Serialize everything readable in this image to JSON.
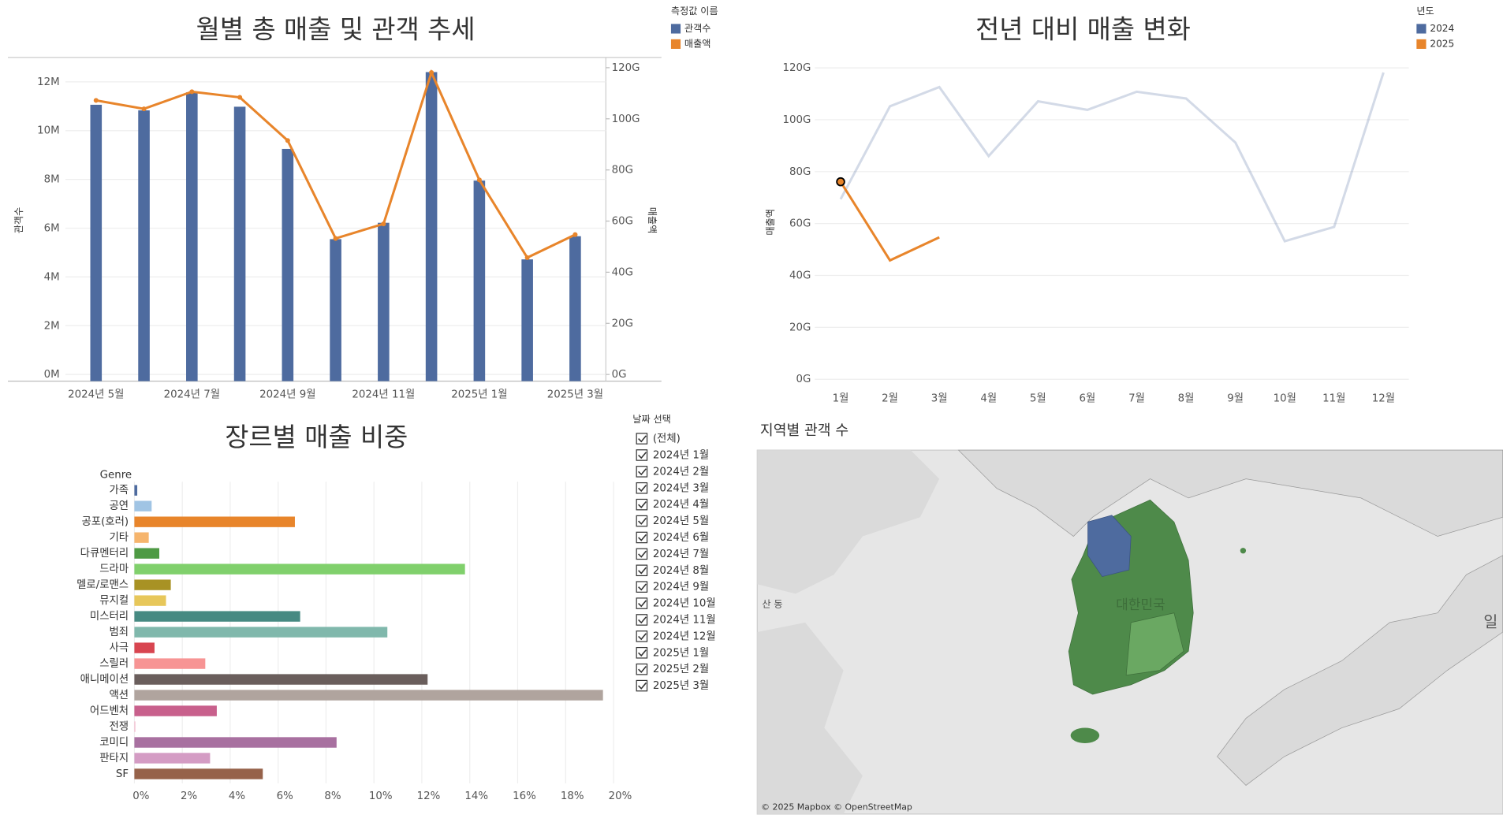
{
  "chart_data": [
    {
      "type": "combo",
      "title": "월별 총 매출 및 관객 추세",
      "legend_title": "측정값 이름",
      "categories": [
        "2024년 5월",
        null,
        "2024년 7월",
        null,
        "2024년 9월",
        null,
        "2024년 11월",
        null,
        "2025년 1월",
        null,
        "2025년 3월"
      ],
      "series": [
        {
          "name": "관객수",
          "type": "bar",
          "color": "#4e6b9f",
          "values": [
            11060000,
            10830000,
            11570000,
            10980000,
            9250000,
            5550000,
            6220000,
            12400000,
            7950000,
            4720000,
            5670000
          ]
        },
        {
          "name": "매출액",
          "type": "line",
          "axis": "y2",
          "color": "#e8852b",
          "values": [
            107200000000,
            103900000000,
            110600000000,
            108400000000,
            91500000000,
            53200000000,
            58900000000,
            118100000000,
            76100000000,
            45700000000,
            54700000000
          ]
        }
      ],
      "ylabel": "관객수",
      "y2label": "매출액",
      "ylim": [
        0,
        13000000
      ],
      "yticks": [
        {
          "value": 0,
          "label": "0M"
        },
        {
          "value": 2000000,
          "label": "2M"
        },
        {
          "value": 4000000,
          "label": "4M"
        },
        {
          "value": 6000000,
          "label": "6M"
        },
        {
          "value": 8000000,
          "label": "8M"
        },
        {
          "value": 10000000,
          "label": "10M"
        },
        {
          "value": 12000000,
          "label": "12M"
        }
      ],
      "y2lim": [
        0,
        124000000000
      ],
      "y2ticks": [
        {
          "value": 0,
          "label": "0G"
        },
        {
          "value": 20000000000,
          "label": "20G"
        },
        {
          "value": 40000000000,
          "label": "40G"
        },
        {
          "value": 60000000000,
          "label": "60G"
        },
        {
          "value": 80000000000,
          "label": "80G"
        },
        {
          "value": 100000000000,
          "label": "100G"
        },
        {
          "value": 120000000000,
          "label": "120G"
        }
      ],
      "grid": true
    },
    {
      "type": "line",
      "title": "전년 대비 매출 변화",
      "legend_title": "년도",
      "categories": [
        "1월",
        "2월",
        "3월",
        "4월",
        "5월",
        "6월",
        "7월",
        "8월",
        "9월",
        "10월",
        "11월",
        "12월"
      ],
      "series": [
        {
          "name": "2024",
          "color": "#4e6b9f",
          "values": [
            69400000000,
            105200000000,
            112600000000,
            86000000000,
            107100000000,
            103800000000,
            110800000000,
            108200000000,
            91200000000,
            53200000000,
            58700000000,
            118200000000
          ]
        },
        {
          "name": "2025",
          "color": "#e8852b",
          "values": [
            76100000000,
            45800000000,
            54700000000,
            null,
            null,
            null,
            null,
            null,
            null,
            null,
            null,
            null
          ]
        }
      ],
      "ylabel": "매출액",
      "ylim": [
        0,
        124000000000
      ],
      "yticks": [
        {
          "value": 0,
          "label": "0G"
        },
        {
          "value": 20000000000,
          "label": "20G"
        },
        {
          "value": 40000000000,
          "label": "40G"
        },
        {
          "value": 60000000000,
          "label": "60G"
        },
        {
          "value": 80000000000,
          "label": "80G"
        },
        {
          "value": 100000000000,
          "label": "100G"
        },
        {
          "value": 120000000000,
          "label": "120G"
        }
      ],
      "grid": true
    },
    {
      "type": "hbar",
      "title": "장르별 매출 비중",
      "category_header": "Genre",
      "categories": [
        "가족",
        "공연",
        "공포(호러)",
        "기타",
        "다큐멘터리",
        "드라마",
        "멜로/로맨스",
        "뮤지컬",
        "미스터리",
        "범죄",
        "사극",
        "스릴러",
        "애니메이션",
        "액션",
        "어드벤처",
        "전쟁",
        "코미디",
        "판타지",
        "SF"
      ],
      "values": [
        0.12,
        0.72,
        6.7,
        0.6,
        1.04,
        13.8,
        1.52,
        1.32,
        6.92,
        10.56,
        0.84,
        2.96,
        12.24,
        19.56,
        3.44,
        0.04,
        8.44,
        3.16,
        5.36
      ],
      "colors": [
        "#4e6b9f",
        "#a0c4e4",
        "#e8852b",
        "#f6b56d",
        "#4e9a44",
        "#80d06c",
        "#a89224",
        "#e7c75a",
        "#468a82",
        "#80b8ac",
        "#d84550",
        "#f79494",
        "#6a5e5c",
        "#b0a49e",
        "#c8608c",
        "#f4b8cc",
        "#a870a0",
        "#d49cc4",
        "#96624a"
      ],
      "xlim": [
        0,
        20.4
      ],
      "xticks": [
        {
          "value": 0,
          "label": "0%"
        },
        {
          "value": 2,
          "label": "2%"
        },
        {
          "value": 4,
          "label": "4%"
        },
        {
          "value": 6,
          "label": "6%"
        },
        {
          "value": 8,
          "label": "8%"
        },
        {
          "value": 10,
          "label": "10%"
        },
        {
          "value": 12,
          "label": "12%"
        },
        {
          "value": 14,
          "label": "14%"
        },
        {
          "value": 16,
          "label": "16%"
        },
        {
          "value": 18,
          "label": "18%"
        },
        {
          "value": 20,
          "label": "20%"
        }
      ],
      "grid": true
    }
  ],
  "filter": {
    "title": "날짜 선택",
    "options": [
      "(전체)",
      "2024년 1월",
      "2024년 2월",
      "2024년 3월",
      "2024년 4월",
      "2024년 5월",
      "2024년 6월",
      "2024년 7월",
      "2024년 8월",
      "2024년 9월",
      "2024년 10월",
      "2024년 11월",
      "2024년 12월",
      "2025년 1월",
      "2025년 2월",
      "2025년 3월"
    ]
  },
  "map": {
    "title": "지역별 관객 수",
    "labels": [
      "산 동",
      "대한민국",
      "일"
    ],
    "attribution": "© 2025 Mapbox © OpenStreetMap"
  }
}
